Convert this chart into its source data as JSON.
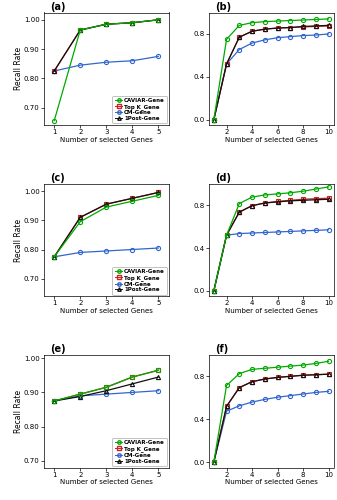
{
  "panel_a": {
    "x": [
      1,
      2,
      3,
      4,
      5
    ],
    "caviar": [
      0.655,
      0.965,
      0.985,
      0.99,
      1.0
    ],
    "topk": [
      0.825,
      0.965,
      0.985,
      0.99,
      1.0
    ],
    "cm": [
      0.825,
      0.845,
      0.855,
      0.86,
      0.875
    ],
    "post": [
      0.825,
      0.965,
      0.985,
      0.99,
      1.0
    ],
    "ylim": [
      0.64,
      1.025
    ],
    "yticks": [
      0.7,
      0.8,
      0.9,
      1.0
    ],
    "yticklabels": [
      "0.70",
      "0.80",
      "0.90",
      "1.00"
    ],
    "ylabel": "Recall Rate",
    "xlabel": "Number of selected Genes",
    "title": "(a)",
    "xticks": [
      1,
      2,
      3,
      4,
      5
    ],
    "xlim": [
      0.6,
      5.4
    ]
  },
  "panel_b": {
    "x": [
      1,
      2,
      3,
      4,
      5,
      6,
      7,
      8,
      9,
      10
    ],
    "caviar": [
      0.0,
      0.75,
      0.88,
      0.905,
      0.915,
      0.92,
      0.925,
      0.93,
      0.935,
      0.94
    ],
    "topk": [
      0.0,
      0.52,
      0.77,
      0.825,
      0.845,
      0.855,
      0.86,
      0.865,
      0.87,
      0.875
    ],
    "cm": [
      0.0,
      0.52,
      0.655,
      0.715,
      0.745,
      0.765,
      0.775,
      0.785,
      0.79,
      0.8
    ],
    "post": [
      0.0,
      0.52,
      0.77,
      0.825,
      0.845,
      0.855,
      0.86,
      0.87,
      0.875,
      0.88
    ],
    "ylim": [
      -0.05,
      1.0
    ],
    "yticks": [
      0.0,
      0.4,
      0.8
    ],
    "yticklabels": [
      "0.0",
      "0.4",
      "0.8"
    ],
    "ylabel": "",
    "xlabel": "Number of selected Genes",
    "title": "(b)",
    "xticks": [
      2,
      4,
      6,
      8,
      10
    ],
    "xlim": [
      0.6,
      10.4
    ]
  },
  "panel_c": {
    "x": [
      1,
      2,
      3,
      4,
      5
    ],
    "caviar": [
      0.775,
      0.895,
      0.945,
      0.965,
      0.985
    ],
    "topk": [
      0.775,
      0.91,
      0.955,
      0.975,
      0.995
    ],
    "cm": [
      0.775,
      0.79,
      0.795,
      0.8,
      0.805
    ],
    "post": [
      0.775,
      0.91,
      0.955,
      0.975,
      0.995
    ],
    "ylim": [
      0.64,
      1.025
    ],
    "yticks": [
      0.7,
      0.8,
      0.9,
      1.0
    ],
    "yticklabels": [
      "0.70",
      "0.80",
      "0.90",
      "1.00"
    ],
    "ylabel": "Recall Rate",
    "xlabel": "Number of selected Genes",
    "title": "(c)",
    "xticks": [
      1,
      2,
      3,
      4,
      5
    ],
    "xlim": [
      0.6,
      5.4
    ]
  },
  "panel_d": {
    "x": [
      1,
      2,
      3,
      4,
      5,
      6,
      7,
      8,
      9,
      10
    ],
    "caviar": [
      0.0,
      0.52,
      0.815,
      0.875,
      0.895,
      0.905,
      0.915,
      0.93,
      0.95,
      0.97
    ],
    "topk": [
      0.0,
      0.52,
      0.735,
      0.795,
      0.82,
      0.835,
      0.845,
      0.855,
      0.86,
      0.865
    ],
    "cm": [
      0.0,
      0.52,
      0.535,
      0.54,
      0.545,
      0.55,
      0.555,
      0.56,
      0.565,
      0.57
    ],
    "post": [
      0.0,
      0.52,
      0.735,
      0.795,
      0.82,
      0.83,
      0.84,
      0.845,
      0.85,
      0.855
    ],
    "ylim": [
      -0.05,
      1.0
    ],
    "yticks": [
      0.0,
      0.4,
      0.8
    ],
    "yticklabels": [
      "0.0",
      "0.4",
      "0.8"
    ],
    "ylabel": "",
    "xlabel": "Number of selected Genes",
    "title": "(d)",
    "xticks": [
      2,
      4,
      6,
      8,
      10
    ],
    "xlim": [
      0.6,
      10.4
    ]
  },
  "panel_e": {
    "x": [
      1,
      2,
      3,
      4,
      5
    ],
    "caviar": [
      0.875,
      0.895,
      0.915,
      0.945,
      0.965
    ],
    "topk": [
      0.875,
      0.895,
      0.915,
      0.945,
      0.965
    ],
    "cm": [
      0.875,
      0.89,
      0.895,
      0.9,
      0.905
    ],
    "post": [
      0.875,
      0.888,
      0.905,
      0.925,
      0.945
    ],
    "ylim": [
      0.68,
      1.01
    ],
    "yticks": [
      0.7,
      0.8,
      0.9,
      1.0
    ],
    "yticklabels": [
      "0.70",
      "0.80",
      "0.90",
      "1.00"
    ],
    "ylabel": "Recall Rate",
    "xlabel": "Number of selected Genes",
    "title": "(e)",
    "xticks": [
      1,
      2,
      3,
      4,
      5
    ],
    "xlim": [
      0.6,
      5.4
    ]
  },
  "panel_f": {
    "x": [
      1,
      2,
      3,
      4,
      5,
      6,
      7,
      8,
      9,
      10
    ],
    "caviar": [
      0.0,
      0.715,
      0.825,
      0.865,
      0.875,
      0.885,
      0.895,
      0.905,
      0.92,
      0.94
    ],
    "topk": [
      0.0,
      0.52,
      0.695,
      0.75,
      0.775,
      0.79,
      0.8,
      0.81,
      0.815,
      0.82
    ],
    "cm": [
      0.0,
      0.475,
      0.525,
      0.56,
      0.585,
      0.605,
      0.62,
      0.635,
      0.65,
      0.66
    ],
    "post": [
      0.0,
      0.52,
      0.695,
      0.75,
      0.775,
      0.79,
      0.8,
      0.81,
      0.815,
      0.82
    ],
    "ylim": [
      -0.05,
      1.0
    ],
    "yticks": [
      0.0,
      0.4,
      0.8
    ],
    "yticklabels": [
      "0.0",
      "0.4",
      "0.8"
    ],
    "ylabel": "",
    "xlabel": "Number of selected Genes",
    "title": "(f)",
    "xticks": [
      2,
      4,
      6,
      8,
      10
    ],
    "xlim": [
      0.6,
      10.4
    ]
  },
  "colors": {
    "caviar": "#00aa00",
    "topk": "#cc2222",
    "cm": "#3366cc",
    "post": "#111111"
  }
}
